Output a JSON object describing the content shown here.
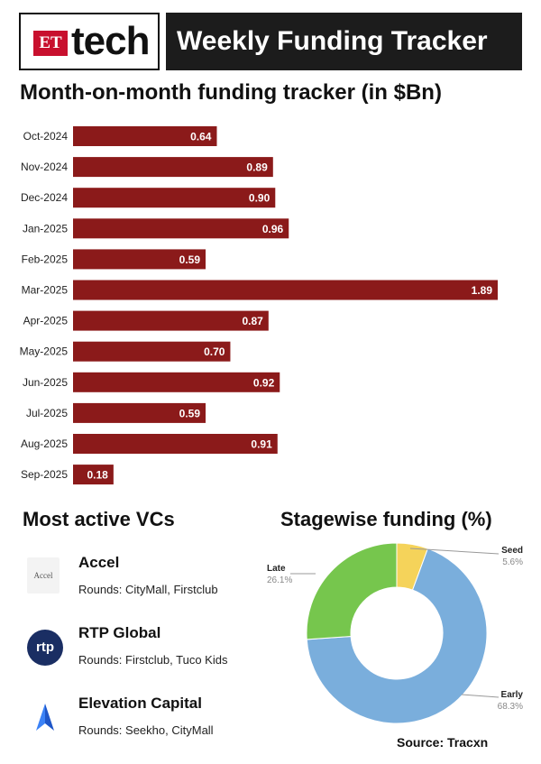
{
  "header": {
    "logo_et": "ET",
    "logo_tech": "tech",
    "title": "Weekly Funding Tracker"
  },
  "bar_section": {
    "title": "Month-on-month funding tracker (in $Bn)"
  },
  "vc_section": {
    "title": "Most active VCs",
    "items": [
      {
        "name": "Accel",
        "rounds": "Rounds: CityMall, Firstclub",
        "icon_name": "accel-logo",
        "icon_text": "Accel"
      },
      {
        "name": "RTP Global",
        "rounds": "Rounds: Firstclub, Tuco Kids",
        "icon_name": "rtp-logo",
        "icon_text": "rtp"
      },
      {
        "name": "Elevation Capital",
        "rounds": "Rounds: Seekho, CityMall",
        "icon_name": "elevation-logo"
      }
    ]
  },
  "stage_section": {
    "title": "Stagewise funding (%)"
  },
  "source": "Source: Tracxn",
  "colors": {
    "bar": "#8b1a1a",
    "seed": "#f5d35a",
    "early": "#7aaedc",
    "late": "#76c64d"
  },
  "chart_data": [
    {
      "type": "bar",
      "orientation": "horizontal",
      "title": "Month-on-month funding tracker (in $Bn)",
      "categories": [
        "Oct-2024",
        "Nov-2024",
        "Dec-2024",
        "Jan-2025",
        "Feb-2025",
        "Mar-2025",
        "Apr-2025",
        "May-2025",
        "Jun-2025",
        "Jul-2025",
        "Aug-2025",
        "Sep-2025"
      ],
      "values": [
        0.64,
        0.89,
        0.9,
        0.96,
        0.59,
        1.89,
        0.87,
        0.7,
        0.92,
        0.59,
        0.91,
        0.18
      ],
      "value_labels": [
        "0.64",
        "0.89",
        "0.90",
        "0.96",
        "0.59",
        "1.89",
        "0.87",
        "0.70",
        "0.92",
        "0.59",
        "0.91",
        "0.18"
      ],
      "xlim": [
        0,
        1.89
      ],
      "grid": false
    },
    {
      "type": "pie",
      "variant": "donut",
      "title": "Stagewise funding (%)",
      "slices": [
        {
          "label": "Seed",
          "value": 5.6,
          "value_label": "5.6%",
          "color": "#f5d35a"
        },
        {
          "label": "Early",
          "value": 68.3,
          "value_label": "68.3%",
          "color": "#7aaedc"
        },
        {
          "label": "Late",
          "value": 26.1,
          "value_label": "26.1%",
          "color": "#76c64d"
        }
      ]
    }
  ]
}
